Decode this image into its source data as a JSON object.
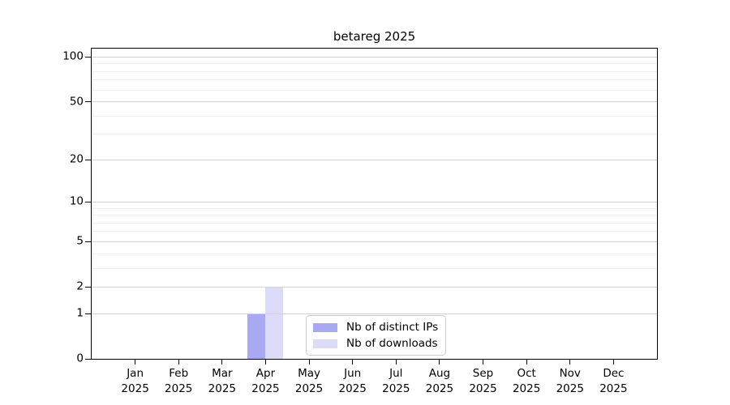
{
  "chart_data": {
    "type": "bar",
    "title": "betareg 2025",
    "categories": [
      "Jan",
      "Feb",
      "Mar",
      "Apr",
      "May",
      "Jun",
      "Jul",
      "Aug",
      "Sep",
      "Oct",
      "Nov",
      "Dec"
    ],
    "x_year_label": "2025",
    "series": [
      {
        "name": "Nb of distinct IPs",
        "color": "#a9a9f2",
        "values": [
          0,
          0,
          0,
          1,
          0,
          0,
          0,
          0,
          0,
          0,
          0,
          0
        ]
      },
      {
        "name": "Nb of downloads",
        "color": "#dcdcf8",
        "values": [
          0,
          0,
          0,
          2,
          0,
          0,
          0,
          0,
          0,
          0,
          0,
          0
        ]
      }
    ],
    "y_scale": "log1p",
    "y_ticks": [
      0,
      1,
      2,
      5,
      10,
      20,
      50,
      100
    ],
    "y_minor_gridlines": [
      3,
      4,
      6,
      7,
      8,
      9,
      30,
      40,
      60,
      70,
      80,
      90
    ],
    "ylim": [
      0,
      114
    ],
    "grid": "horizontal",
    "legend_position": "lower center",
    "colors": {
      "major_grid": "#d2d2d2",
      "minor_grid": "#efefef",
      "spine": "#000000",
      "text": "#000000",
      "background": "#ffffff"
    }
  }
}
